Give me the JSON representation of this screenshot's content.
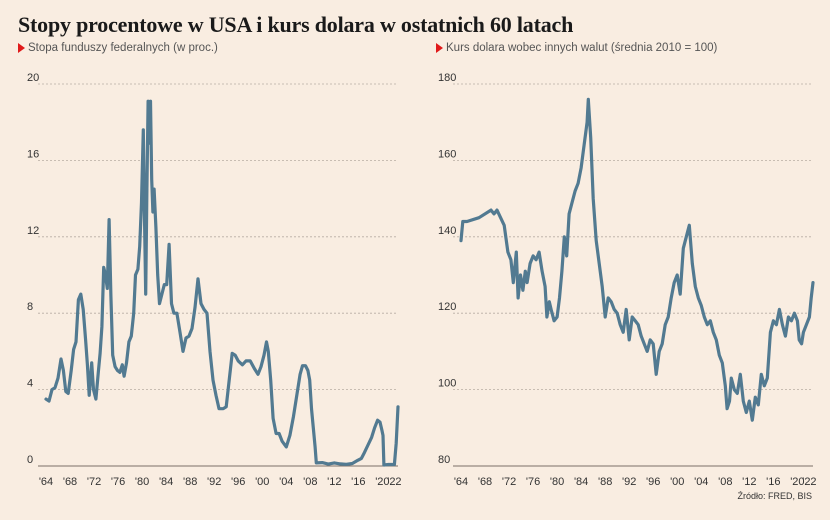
{
  "title": "Stopy procentowe w USA i kurs dolara w ostatnich 60 latach",
  "source": "Źródło: FRED, BIS",
  "colors": {
    "line": "#527a91",
    "marker": "#e01a1a",
    "background": "#f9ede1"
  },
  "chart_data": [
    {
      "type": "line",
      "subtitle": "Stopa funduszy federalnych (w proc.)",
      "xlim": [
        1964,
        2022.6
      ],
      "ylim": [
        0,
        20
      ],
      "yticks": [
        0,
        4,
        8,
        12,
        16,
        20
      ],
      "xtick_labels": [
        "'64",
        "'68",
        "'72",
        "'76",
        "'80",
        "'84",
        "'88",
        "'92",
        "'96",
        "'00",
        "'04",
        "'08",
        "'12",
        "'16",
        "'20",
        "'22"
      ],
      "xtick_values": [
        1964,
        1968,
        1972,
        1976,
        1980,
        1984,
        1988,
        1992,
        1996,
        2000,
        2004,
        2008,
        2012,
        2016,
        2020,
        2022
      ],
      "grid": true,
      "x": [
        1964.0,
        1964.5,
        1965.0,
        1965.5,
        1966.0,
        1966.5,
        1966.9,
        1967.3,
        1967.7,
        1968.2,
        1968.6,
        1969.0,
        1969.4,
        1969.8,
        1970.2,
        1970.6,
        1970.9,
        1971.2,
        1971.6,
        1971.9,
        1972.3,
        1972.7,
        1973.0,
        1973.3,
        1973.6,
        1973.9,
        1974.2,
        1974.5,
        1974.8,
        1975.1,
        1975.5,
        1975.9,
        1976.3,
        1976.7,
        1977.0,
        1977.4,
        1977.8,
        1978.2,
        1978.6,
        1978.9,
        1979.3,
        1979.6,
        1979.9,
        1980.2,
        1980.4,
        1980.6,
        1980.8,
        1981.0,
        1981.2,
        1981.4,
        1981.6,
        1981.8,
        1982.0,
        1982.3,
        1982.6,
        1982.9,
        1983.3,
        1983.7,
        1984.1,
        1984.5,
        1984.9,
        1985.3,
        1985.8,
        1986.3,
        1986.8,
        1987.3,
        1987.8,
        1988.3,
        1988.8,
        1989.3,
        1989.8,
        1990.3,
        1990.8,
        1991.3,
        1991.8,
        1992.3,
        1992.8,
        1993.5,
        1994.0,
        1994.5,
        1995.0,
        1995.5,
        1996.0,
        1996.7,
        1997.3,
        1998.0,
        1998.7,
        1999.3,
        1999.8,
        2000.3,
        2000.7,
        2001.0,
        2001.4,
        2001.8,
        2002.3,
        2002.8,
        2003.3,
        2004.0,
        2004.6,
        2005.2,
        2005.8,
        2006.3,
        2006.7,
        2007.2,
        2007.6,
        2007.9,
        2008.2,
        2008.5,
        2008.8,
        2009.0,
        2010.0,
        2011.0,
        2012.0,
        2013.0,
        2014.0,
        2015.0,
        2015.9,
        2016.5,
        2017.0,
        2017.6,
        2018.2,
        2018.7,
        2019.2,
        2019.6,
        2019.9,
        2020.1,
        2020.25,
        2021.0,
        2022.0,
        2022.3,
        2022.6
      ],
      "y": [
        3.5,
        3.4,
        4.0,
        4.1,
        4.6,
        5.6,
        5.0,
        3.9,
        3.8,
        5.0,
        6.1,
        6.5,
        8.7,
        9.0,
        8.2,
        6.6,
        5.3,
        3.7,
        5.4,
        4.0,
        3.5,
        4.9,
        5.9,
        7.3,
        10.4,
        10.0,
        9.3,
        12.9,
        8.9,
        5.8,
        5.2,
        5.0,
        4.9,
        5.3,
        4.7,
        5.4,
        6.5,
        6.8,
        8.0,
        10.0,
        10.3,
        11.5,
        13.8,
        17.6,
        13.0,
        9.0,
        14.5,
        19.1,
        16.9,
        19.1,
        15.0,
        13.3,
        14.5,
        12.5,
        10.0,
        8.5,
        9.0,
        9.5,
        9.5,
        11.6,
        8.5,
        8.0,
        8.0,
        7.0,
        6.0,
        6.7,
        6.8,
        7.2,
        8.3,
        9.8,
        8.5,
        8.2,
        8.0,
        6.0,
        4.5,
        3.7,
        3.0,
        3.0,
        3.1,
        4.5,
        5.9,
        5.8,
        5.5,
        5.3,
        5.5,
        5.5,
        5.1,
        4.8,
        5.2,
        5.8,
        6.5,
        6.0,
        4.5,
        2.5,
        1.7,
        1.7,
        1.3,
        1.0,
        1.6,
        2.6,
        3.8,
        4.8,
        5.25,
        5.25,
        5.0,
        4.5,
        3.0,
        2.0,
        1.0,
        0.16,
        0.18,
        0.1,
        0.16,
        0.11,
        0.09,
        0.13,
        0.3,
        0.4,
        0.7,
        1.1,
        1.5,
        2.0,
        2.4,
        2.3,
        1.9,
        1.6,
        0.05,
        0.08,
        0.08,
        1.2,
        3.1
      ]
    },
    {
      "type": "line",
      "subtitle": "Kurs dolara wobec innych walut (średnia 2010 = 100)",
      "xlim": [
        1964,
        2022.6
      ],
      "ylim": [
        80,
        180
      ],
      "yticks": [
        80,
        100,
        120,
        140,
        160,
        180
      ],
      "xtick_labels": [
        "'64",
        "'68",
        "'72",
        "'76",
        "'80",
        "'84",
        "'88",
        "'92",
        "'96",
        "'00",
        "'04",
        "'08",
        "'12",
        "'16",
        "'20",
        "'22"
      ],
      "xtick_values": [
        1964,
        1968,
        1972,
        1976,
        1980,
        1984,
        1988,
        1992,
        1996,
        2000,
        2004,
        2008,
        2012,
        2016,
        2020,
        2022
      ],
      "grid": true,
      "x": [
        1964.0,
        1964.3,
        1965.0,
        1967.0,
        1969.0,
        1969.5,
        1970.0,
        1970.6,
        1971.2,
        1971.8,
        1972.3,
        1972.7,
        1973.2,
        1973.5,
        1973.9,
        1974.3,
        1974.7,
        1975.0,
        1975.5,
        1976.0,
        1976.5,
        1977.0,
        1977.5,
        1978.0,
        1978.3,
        1978.7,
        1979.0,
        1979.5,
        1980.0,
        1980.4,
        1980.8,
        1981.2,
        1981.6,
        1982.0,
        1982.5,
        1983.0,
        1983.5,
        1984.0,
        1984.5,
        1985.0,
        1985.2,
        1985.6,
        1986.0,
        1986.5,
        1987.0,
        1987.5,
        1988.0,
        1988.5,
        1989.0,
        1989.5,
        1990.0,
        1990.5,
        1991.0,
        1991.5,
        1992.0,
        1992.5,
        1993.0,
        1993.5,
        1994.0,
        1994.5,
        1995.0,
        1995.5,
        1996.0,
        1996.5,
        1997.0,
        1997.5,
        1998.0,
        1998.5,
        1999.0,
        1999.5,
        2000.0,
        2000.5,
        2001.0,
        2001.5,
        2002.0,
        2002.5,
        2003.0,
        2003.5,
        2004.0,
        2004.5,
        2005.0,
        2005.5,
        2006.0,
        2006.5,
        2007.0,
        2007.5,
        2008.0,
        2008.3,
        2008.7,
        2009.0,
        2009.5,
        2010.0,
        2010.5,
        2011.0,
        2011.5,
        2012.0,
        2012.5,
        2013.0,
        2013.5,
        2014.0,
        2014.5,
        2015.0,
        2015.5,
        2016.0,
        2016.5,
        2017.0,
        2017.5,
        2018.0,
        2018.5,
        2019.0,
        2019.5,
        2020.0,
        2020.3,
        2020.7,
        2021.0,
        2021.5,
        2022.0,
        2022.3,
        2022.6
      ],
      "y": [
        139,
        144,
        144,
        145,
        147,
        146,
        147,
        145,
        143,
        136,
        134,
        128,
        136,
        124,
        130,
        126,
        131,
        128,
        133,
        135,
        134,
        136,
        131,
        127,
        119,
        123,
        121,
        118,
        119,
        124,
        131,
        140,
        135,
        146,
        149,
        152,
        154,
        158,
        164,
        170,
        176,
        166,
        150,
        139,
        133,
        127,
        119,
        124,
        123,
        121,
        120,
        117,
        115,
        121,
        113,
        119,
        118,
        117,
        114,
        112,
        110,
        113,
        112,
        104,
        110,
        112,
        117,
        119,
        124,
        128,
        130,
        125,
        137,
        140,
        143,
        133,
        127,
        124,
        122,
        119,
        117,
        118,
        115,
        113,
        109,
        107,
        101,
        95,
        97,
        103,
        100,
        99,
        104,
        97,
        94,
        97,
        92,
        98,
        96,
        104,
        101,
        103,
        115,
        118,
        117,
        121,
        117,
        114,
        119,
        118,
        120,
        118,
        113,
        112,
        115,
        117,
        119,
        124,
        128
      ]
    }
  ]
}
